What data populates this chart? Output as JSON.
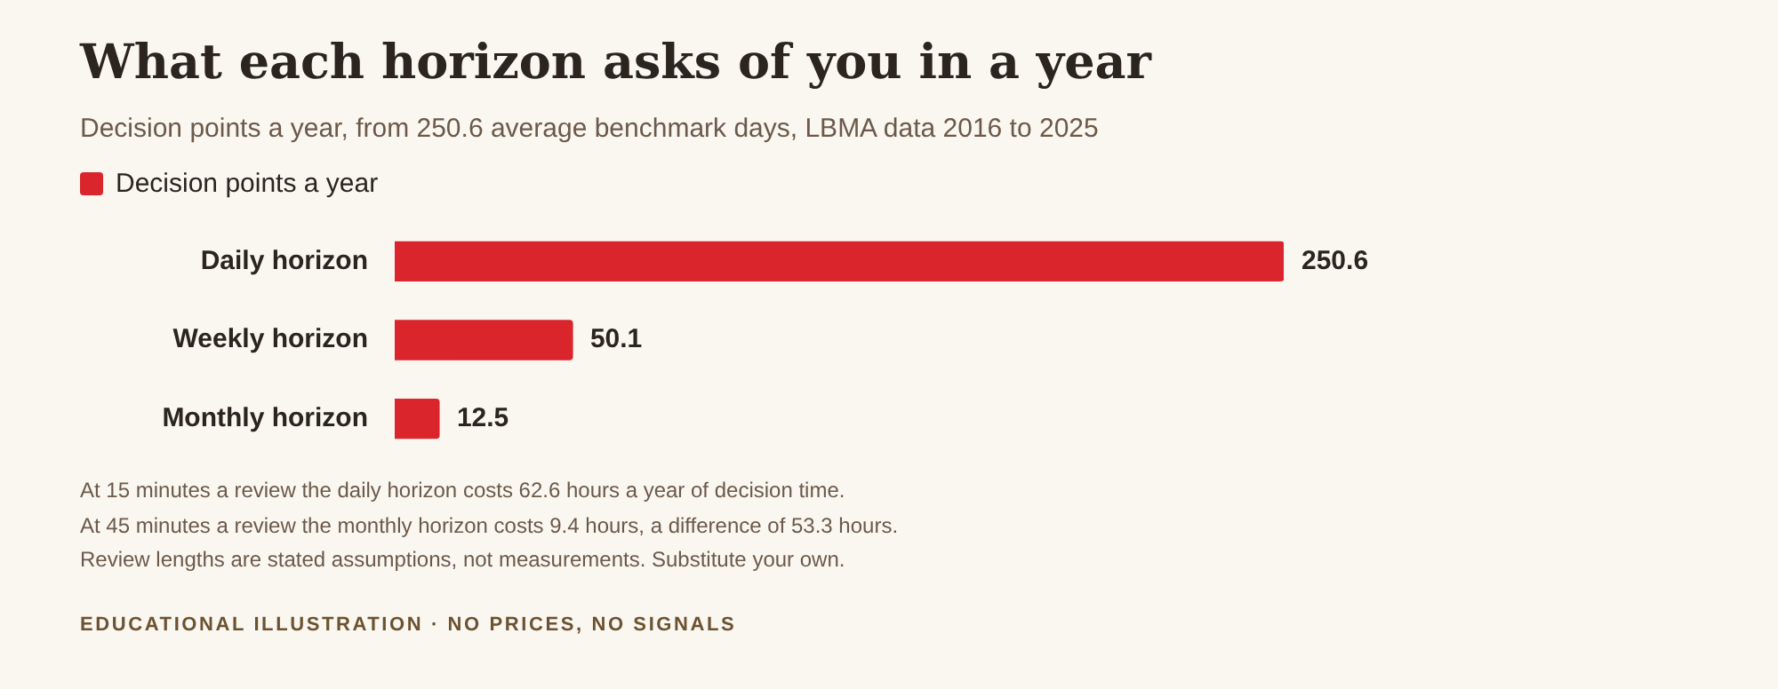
{
  "chart_data": {
    "type": "bar",
    "orientation": "horizontal",
    "title": "What each horizon asks of you in a year",
    "subtitle": "Decision points a year, from 250.6 average benchmark days, LBMA data 2016 to 2025",
    "categories": [
      "Daily horizon",
      "Weekly horizon",
      "Monthly horizon"
    ],
    "series": [
      {
        "name": "Decision points a year",
        "color": "#d9252b",
        "values": [
          250.6,
          50.1,
          12.5
        ]
      }
    ],
    "data_labels": true,
    "legend": "top left",
    "grid": false,
    "annotations": [
      "At 15 minutes a review the daily horizon costs 62.6 hours a year of decision time.",
      "At 45 minutes a review the monthly horizon costs 9.4 hours, a difference of 53.3 hours.",
      "Review lengths are stated assumptions, not measurements. Substitute your own.",
      "EDUCATIONAL ILLUSTRATION · NO PRICES, NO SIGNALS"
    ]
  }
}
